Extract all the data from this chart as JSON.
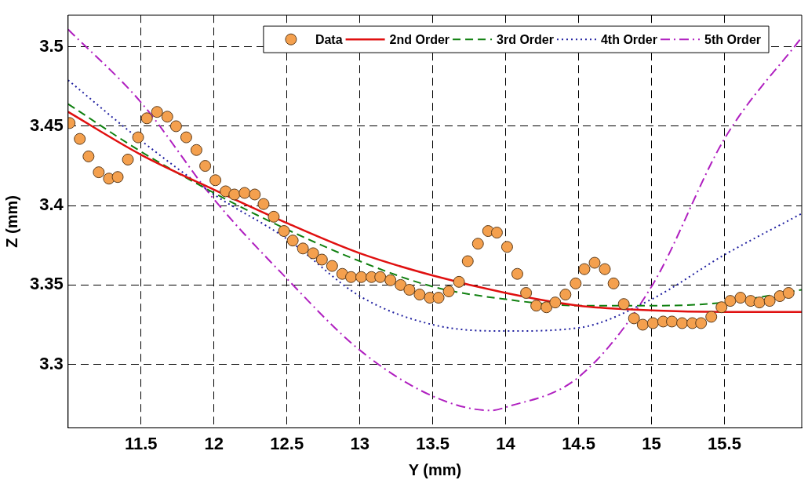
{
  "chart_data": {
    "type": "scatter",
    "xlabel": "Y (mm)",
    "ylabel": "Z (mm)",
    "xlim": [
      11.0,
      16.03
    ],
    "ylim": [
      3.26,
      3.52
    ],
    "xticks": [
      11.5,
      12,
      12.5,
      13,
      13.5,
      14,
      14.5,
      15,
      15.5
    ],
    "yticks": [
      3.3,
      3.35,
      3.4,
      3.45,
      3.5
    ],
    "grid": true,
    "legend": "top",
    "series": [
      {
        "name": "Data",
        "marker": "circle",
        "color": "#f4a04e",
        "x": [
          11.01,
          11.08,
          11.14,
          11.21,
          11.28,
          11.34,
          11.41,
          11.48,
          11.54,
          11.61,
          11.68,
          11.74,
          11.81,
          11.88,
          11.94,
          12.01,
          12.08,
          12.14,
          12.21,
          12.28,
          12.34,
          12.41,
          12.48,
          12.54,
          12.61,
          12.68,
          12.74,
          12.81,
          12.88,
          12.94,
          13.01,
          13.08,
          13.14,
          13.21,
          13.28,
          13.34,
          13.41,
          13.48,
          13.54,
          13.61,
          13.68,
          13.74,
          13.81,
          13.88,
          13.94,
          14.01,
          14.08,
          14.14,
          14.21,
          14.28,
          14.34,
          14.41,
          14.48,
          14.54,
          14.61,
          14.68,
          14.74,
          14.81,
          14.88,
          14.94,
          15.01,
          15.08,
          15.14,
          15.21,
          15.28,
          15.34,
          15.41,
          15.48,
          15.54,
          15.61,
          15.68,
          15.74,
          15.81,
          15.88,
          15.94
        ],
        "values": [
          3.452,
          3.442,
          3.431,
          3.421,
          3.417,
          3.418,
          3.429,
          3.443,
          3.455,
          3.459,
          3.456,
          3.45,
          3.443,
          3.435,
          3.425,
          3.416,
          3.409,
          3.407,
          3.408,
          3.407,
          3.401,
          3.393,
          3.384,
          3.378,
          3.373,
          3.37,
          3.366,
          3.362,
          3.357,
          3.355,
          3.355,
          3.355,
          3.355,
          3.353,
          3.35,
          3.347,
          3.344,
          3.342,
          3.342,
          3.346,
          3.352,
          3.365,
          3.376,
          3.384,
          3.383,
          3.374,
          3.357,
          3.345,
          3.337,
          3.336,
          3.339,
          3.344,
          3.351,
          3.36,
          3.364,
          3.36,
          3.351,
          3.338,
          3.329,
          3.325,
          3.326,
          3.327,
          3.327,
          3.326,
          3.326,
          3.326,
          3.33,
          3.336,
          3.34,
          3.342,
          3.34,
          3.339,
          3.34,
          3.343,
          3.345
        ]
      },
      {
        "name": "2nd Order",
        "type": "line",
        "marker": "none",
        "line_style": "solid",
        "color": "#e01010",
        "x": [
          11.0,
          11.5,
          12,
          12.5,
          13,
          13.5,
          14,
          14.5,
          15,
          15.5,
          16.03
        ],
        "values": [
          3.459,
          3.432,
          3.41,
          3.389,
          3.37,
          3.356,
          3.345,
          3.337,
          3.334,
          3.333,
          3.333
        ]
      },
      {
        "name": "3rd Order",
        "type": "line",
        "marker": "none",
        "line_style": "dashed",
        "color": "#108010",
        "x": [
          11.0,
          11.5,
          12,
          12.5,
          13,
          13.5,
          14,
          14.5,
          15,
          15.5,
          16.03
        ],
        "values": [
          3.464,
          3.434,
          3.408,
          3.385,
          3.365,
          3.349,
          3.341,
          3.337,
          3.337,
          3.339,
          3.347
        ]
      },
      {
        "name": "4th Order",
        "type": "line",
        "marker": "none",
        "line_style": "dotted",
        "color": "#2020a0",
        "x": [
          11.0,
          11.5,
          12,
          12.5,
          13,
          13.5,
          14,
          14.5,
          15,
          15.5,
          16.03
        ],
        "values": [
          3.479,
          3.441,
          3.407,
          3.379,
          3.343,
          3.325,
          3.321,
          3.323,
          3.341,
          3.369,
          3.395
        ]
      },
      {
        "name": "5th Order",
        "type": "line",
        "marker": "none",
        "line_style": "dashdot",
        "color": "#b020c0",
        "x": [
          11.0,
          11.5,
          12,
          12.5,
          13,
          13.5,
          13.9,
          14,
          14.5,
          15,
          15.5,
          16.03
        ],
        "values": [
          3.511,
          3.465,
          3.404,
          3.354,
          3.309,
          3.28,
          3.271,
          3.273,
          3.292,
          3.349,
          3.442,
          3.506
        ]
      }
    ]
  }
}
